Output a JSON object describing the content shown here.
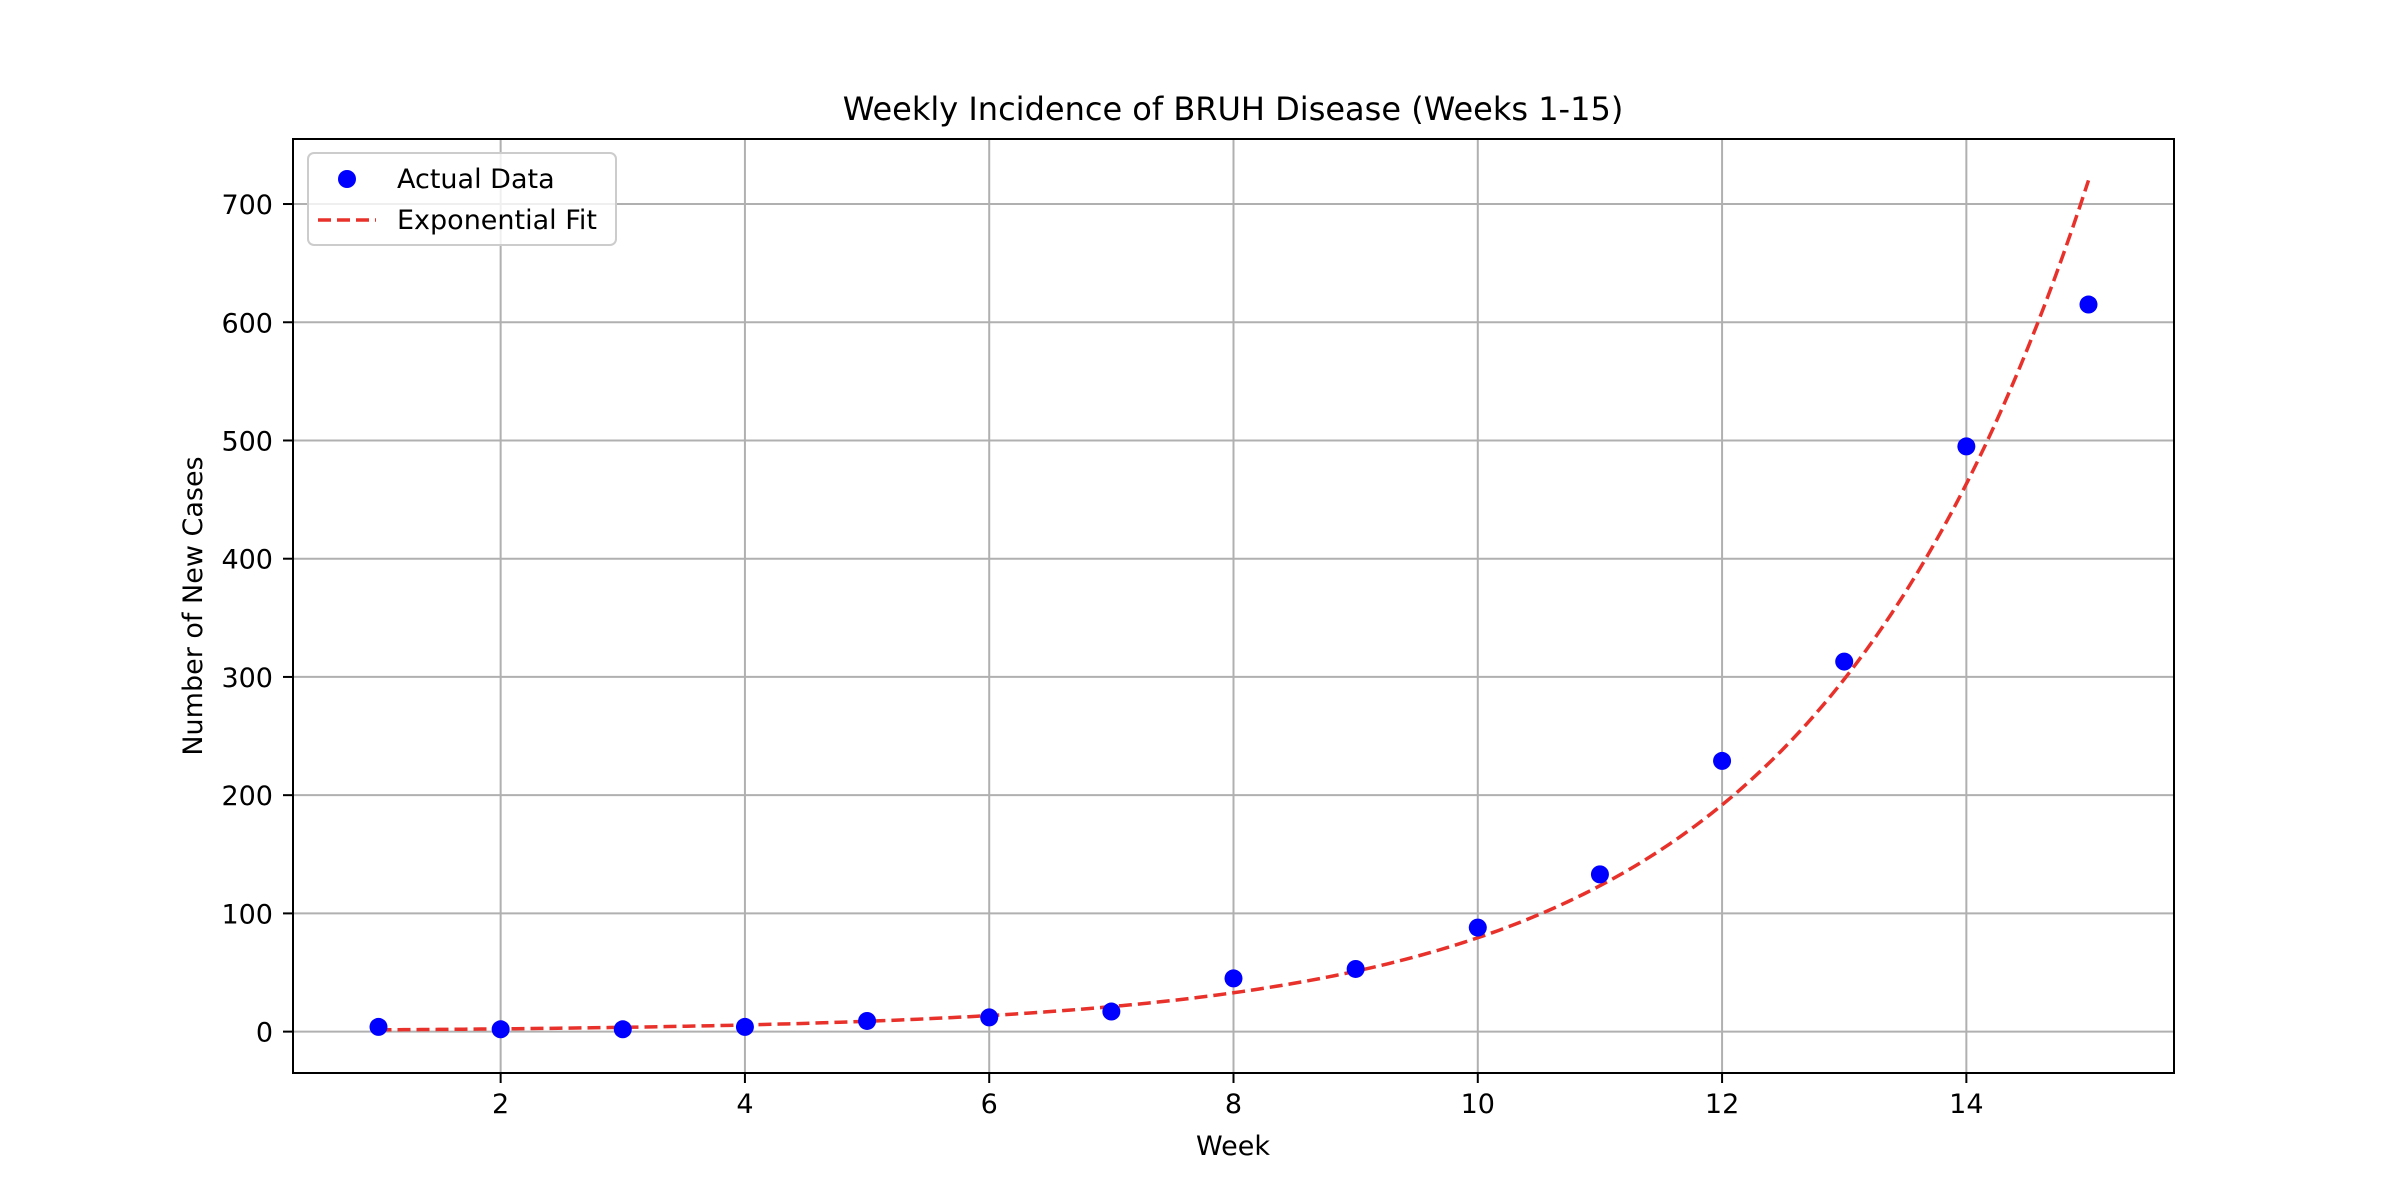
{
  "chart_data": {
    "type": "scatter",
    "title": "Weekly Incidence of BRUH Disease (Weeks 1-15)",
    "xlabel": "Week",
    "ylabel": "Number of New Cases",
    "xlim": [
      0.3,
      15.7
    ],
    "ylim": [
      -35,
      755
    ],
    "x_ticks": [
      2,
      4,
      6,
      8,
      10,
      12,
      14
    ],
    "y_ticks": [
      0,
      100,
      200,
      300,
      400,
      500,
      600,
      700
    ],
    "grid": true,
    "legend_position": "top-left",
    "series": [
      {
        "name": "Actual Data",
        "kind": "scatter",
        "color": "#0000ff",
        "x": [
          1,
          2,
          3,
          4,
          5,
          6,
          7,
          8,
          9,
          10,
          11,
          12,
          13,
          14,
          15
        ],
        "y": [
          4,
          2,
          2,
          4,
          9,
          12,
          17,
          45,
          53,
          88,
          133,
          229,
          313,
          495,
          615
        ]
      },
      {
        "name": "Exponential Fit",
        "kind": "line",
        "style": "dashed",
        "color": "#e8312a",
        "function": "exponential",
        "x_range": [
          1,
          15
        ],
        "anchor_points": [
          [
            1,
            1.5
          ],
          [
            15,
            720
          ]
        ]
      }
    ]
  }
}
